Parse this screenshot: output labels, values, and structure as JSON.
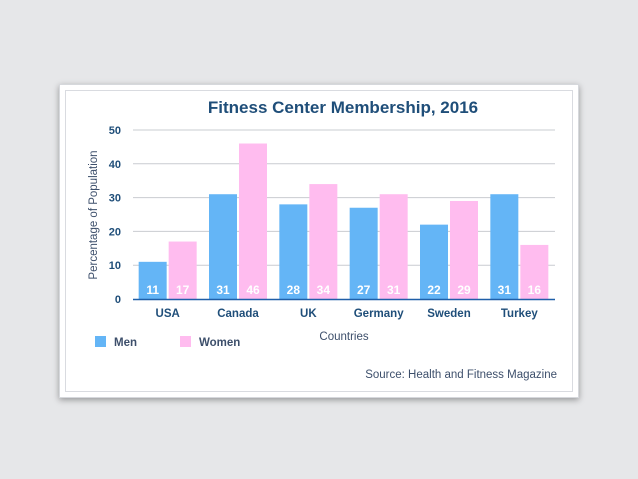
{
  "chart_data": {
    "type": "bar",
    "title": "Fitness Center Membership, 2016",
    "xlabel": "Countries",
    "ylabel": "Percentage of Population",
    "ylim": [
      0,
      50
    ],
    "yticks": [
      0,
      10,
      20,
      30,
      40,
      50
    ],
    "categories": [
      "USA",
      "Canada",
      "UK",
      "Germany",
      "Sweden",
      "Turkey"
    ],
    "series": [
      {
        "name": "Men",
        "values": [
          11,
          31,
          28,
          27,
          22,
          31
        ],
        "color": "#64b5f6"
      },
      {
        "name": "Women",
        "values": [
          17,
          46,
          34,
          31,
          29,
          16
        ],
        "color": "#ffbcef"
      }
    ],
    "grid": true,
    "legend_position": "bottom-left",
    "source": "Source: Health and Fitness Magazine",
    "colors": {
      "title": "#1f4e79",
      "text": "#3d4f6b",
      "axis": "#1f4e79",
      "grid": "#c9ccd1",
      "value_label": "#ffffff"
    }
  }
}
